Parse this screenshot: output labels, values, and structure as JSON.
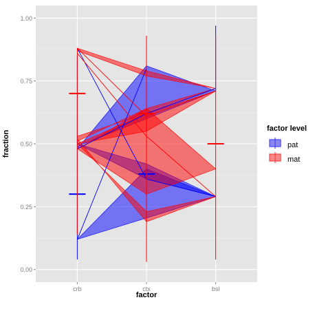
{
  "chart_data": {
    "type": "line",
    "xlabel": "factor",
    "ylabel": "fraction",
    "categories": [
      "crb",
      "ctx",
      "bsl"
    ],
    "ylim": [
      0,
      1
    ],
    "y_ticks": [
      "0.00",
      "0.25",
      "0.50",
      "0.75",
      "1.00"
    ],
    "grid": true,
    "legend": {
      "title": "factor level",
      "position": "right",
      "entries": [
        {
          "name": "pat",
          "color": "#3333FF"
        },
        {
          "name": "mat",
          "color": "#FF3333"
        }
      ]
    },
    "series": [
      {
        "name": "pat",
        "color": "#0000FF",
        "means": [
          0.3,
          0.38,
          null
        ],
        "errorbars": [
          {
            "category": "crb",
            "low": 0.04,
            "high": 0.85
          },
          {
            "category": "ctx",
            "low": 0.1,
            "high": 0.66
          },
          {
            "category": "bsl",
            "low": 0.71,
            "high": 0.97
          }
        ],
        "polygons": [
          [
            [
              "crb",
              0.48
            ],
            [
              "ctx",
              0.81
            ],
            [
              "bsl",
              0.71
            ],
            [
              "crb",
              0.49
            ]
          ],
          [
            [
              "crb",
              0.12
            ],
            [
              "ctx",
              0.4
            ],
            [
              "bsl",
              0.29
            ],
            [
              "crb",
              0.12
            ]
          ],
          [
            [
              "crb",
              0.5
            ],
            [
              "ctx",
              0.42
            ],
            [
              "bsl",
              0.29
            ],
            [
              "ctx",
              0.36
            ],
            [
              "crb",
              0.5
            ]
          ]
        ],
        "lines": [
          [
            [
              "crb",
              0.88
            ],
            [
              "ctx",
              0.36
            ],
            [
              "bsl",
              0.29
            ]
          ],
          [
            [
              "crb",
              0.12
            ],
            [
              "ctx",
              0.8
            ]
          ],
          [
            [
              "crb",
              0.48
            ],
            [
              "ctx",
              0.62
            ],
            [
              "bsl",
              0.72
            ]
          ]
        ]
      },
      {
        "name": "mat",
        "color": "#FF0000",
        "means": [
          0.7,
          0.62,
          0.5
        ],
        "errorbars": [
          {
            "category": "crb",
            "low": 0.14,
            "high": 0.88
          },
          {
            "category": "ctx",
            "low": 0.03,
            "high": 0.93
          },
          {
            "category": "bsl",
            "low": 0.04,
            "high": 0.93
          }
        ],
        "polygons": [
          [
            [
              "crb",
              0.88
            ],
            [
              "ctx",
              0.79
            ],
            [
              "bsl",
              0.72
            ],
            [
              "ctx",
              0.77
            ],
            [
              "crb",
              0.87
            ]
          ],
          [
            [
              "crb",
              0.53
            ],
            [
              "ctx",
              0.62
            ],
            [
              "bsl",
              0.72
            ],
            [
              "ctx",
              0.64
            ],
            [
              "crb",
              0.51
            ]
          ],
          [
            [
              "crb",
              0.48
            ],
            [
              "ctx",
              0.64
            ],
            [
              "bsl",
              0.4
            ],
            [
              "ctx",
              0.3
            ],
            [
              "crb",
              0.48
            ]
          ],
          [
            [
              "crb",
              0.52
            ],
            [
              "ctx",
              0.19
            ],
            [
              "bsl",
              0.29
            ],
            [
              "ctx",
              0.23
            ],
            [
              "crb",
              0.5
            ]
          ],
          [
            [
              "crb",
              0.5
            ],
            [
              "ctx",
              0.62
            ],
            [
              "bsl",
              0.71
            ],
            [
              "ctx",
              0.55
            ],
            [
              "crb",
              0.5
            ]
          ]
        ],
        "lines": [
          [
            [
              "crb",
              0.88
            ],
            [
              "ctx",
              0.61
            ],
            [
              "bsl",
              0.71
            ]
          ],
          [
            [
              "crb",
              0.86
            ],
            [
              "ctx",
              0.53
            ],
            [
              "bsl",
              0.29
            ]
          ]
        ]
      }
    ]
  }
}
